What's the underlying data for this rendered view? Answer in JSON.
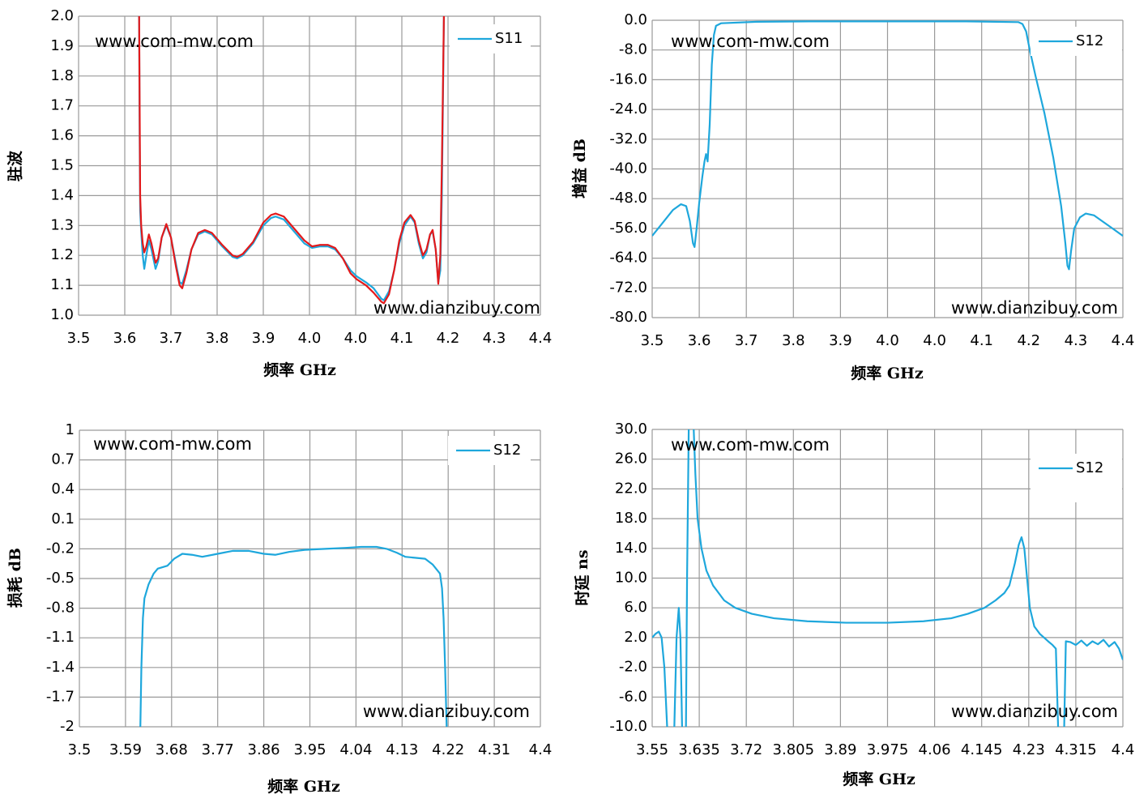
{
  "chart_data": [
    {
      "type": "line",
      "y_label": "驻波",
      "x_label": "频率 GHz",
      "annotations": [
        "www.com-mw.com",
        "www.dianzibuy.com"
      ],
      "x": [
        3.618,
        3.619,
        3.62,
        3.622,
        3.625,
        3.628,
        3.632,
        3.637,
        3.642,
        3.65,
        3.655,
        3.662,
        3.671,
        3.68,
        3.69,
        3.697,
        3.702,
        3.71,
        3.72,
        3.733,
        3.746,
        3.76,
        3.78,
        3.8,
        3.809,
        3.82,
        3.84,
        3.86,
        3.875,
        3.884,
        3.9,
        3.92,
        3.94,
        3.955,
        3.97,
        3.986,
        4.0,
        4.015,
        4.03,
        4.042,
        4.06,
        4.075,
        4.09,
        4.095,
        4.105,
        4.115,
        4.125,
        4.135,
        4.147,
        4.155,
        4.163,
        4.171,
        4.178,
        4.185,
        4.19,
        4.196,
        4.201,
        4.205,
        4.208,
        4.212
      ],
      "series": [
        {
          "name": "S11",
          "color": "#1ea7dc",
          "values": [
            2.0,
            1.6,
            1.35,
            1.28,
            1.2,
            1.155,
            1.2,
            1.25,
            1.22,
            1.155,
            1.18,
            1.26,
            1.3,
            1.26,
            1.17,
            1.11,
            1.105,
            1.15,
            1.22,
            1.27,
            1.28,
            1.27,
            1.23,
            1.195,
            1.19,
            1.2,
            1.24,
            1.3,
            1.325,
            1.33,
            1.32,
            1.28,
            1.24,
            1.225,
            1.23,
            1.23,
            1.22,
            1.19,
            1.15,
            1.13,
            1.11,
            1.09,
            1.055,
            1.05,
            1.08,
            1.15,
            1.24,
            1.3,
            1.33,
            1.31,
            1.24,
            1.19,
            1.21,
            1.27,
            1.28,
            1.22,
            1.11,
            1.15,
            1.4,
            2.0
          ]
        },
        {
          "color": "#e3191b",
          "values": [
            2.0,
            1.7,
            1.4,
            1.3,
            1.24,
            1.21,
            1.23,
            1.27,
            1.24,
            1.175,
            1.19,
            1.26,
            1.305,
            1.26,
            1.16,
            1.1,
            1.09,
            1.14,
            1.22,
            1.275,
            1.285,
            1.275,
            1.235,
            1.2,
            1.195,
            1.205,
            1.245,
            1.31,
            1.335,
            1.34,
            1.33,
            1.29,
            1.25,
            1.23,
            1.235,
            1.235,
            1.225,
            1.19,
            1.14,
            1.12,
            1.1,
            1.075,
            1.045,
            1.04,
            1.07,
            1.15,
            1.25,
            1.31,
            1.335,
            1.315,
            1.25,
            1.2,
            1.22,
            1.27,
            1.285,
            1.22,
            1.105,
            1.2,
            1.5,
            2.0
          ]
        }
      ],
      "xlim": [
        3.5,
        4.4
      ],
      "ylim": [
        1.0,
        2.0
      ],
      "xticks": [
        3.5,
        {
          "value": 3.59,
          "label": "3.6"
        },
        {
          "value": 3.68,
          "label": "3.7"
        },
        {
          "value": 3.77,
          "label": "3.8"
        },
        {
          "value": 3.86,
          "label": "3.9"
        },
        {
          "value": 3.95,
          "label": "4.0"
        },
        {
          "value": 4.04,
          "label": "4.0"
        },
        {
          "value": 4.13,
          "label": "4.1"
        },
        {
          "value": 4.22,
          "label": "4.2"
        },
        {
          "value": 4.31,
          "label": "4.3"
        },
        4.4
      ],
      "yticks": [
        {
          "value": 1.0,
          "label": "1.0"
        },
        1.1,
        1.2,
        1.3,
        1.4,
        1.5,
        1.6,
        1.7,
        1.8,
        1.9,
        {
          "value": 2.0,
          "label": "2.0"
        }
      ],
      "grid": true,
      "legend": "upper right"
    },
    {
      "type": "line",
      "y_label": "增益 dB",
      "x_label": "频率 GHz",
      "annotations": [
        "www.com-mw.com",
        "www.dianzibuy.com"
      ],
      "x": [
        3.5,
        3.52,
        3.54,
        3.555,
        3.565,
        3.572,
        3.578,
        3.581,
        3.585,
        3.59,
        3.596,
        3.6,
        3.603,
        3.606,
        3.61,
        3.614,
        3.618,
        3.622,
        3.632,
        3.7,
        3.8,
        3.9,
        4.0,
        4.1,
        4.2,
        4.208,
        4.215,
        4.222,
        4.233,
        4.25,
        4.267,
        4.282,
        4.29,
        4.294,
        4.297,
        4.301,
        4.307,
        4.318,
        4.329,
        4.345,
        4.36,
        4.38,
        4.4
      ],
      "series": [
        {
          "name": "S12",
          "color": "#1ea7dc",
          "values": [
            -58,
            -54.5,
            -51,
            -49.5,
            -50,
            -54,
            -60,
            -61,
            -56,
            -49,
            -42,
            -38,
            -36,
            -38,
            -28,
            -12,
            -4,
            -1.5,
            -0.8,
            -0.4,
            -0.3,
            -0.3,
            -0.3,
            -0.3,
            -0.5,
            -1,
            -3,
            -8,
            -15,
            -25,
            -37,
            -50,
            -60,
            -66,
            -67,
            -62,
            -56,
            -53,
            -52,
            -52.5,
            -54,
            -56,
            -58
          ]
        }
      ],
      "xlim": [
        3.5,
        4.4
      ],
      "ylim": [
        -80,
        0
      ],
      "xticks": [
        3.5,
        {
          "value": 3.59,
          "label": "3.6"
        },
        {
          "value": 3.68,
          "label": "3.7"
        },
        {
          "value": 3.77,
          "label": "3.8"
        },
        {
          "value": 3.86,
          "label": "3.9"
        },
        {
          "value": 3.95,
          "label": "4.0"
        },
        {
          "value": 4.04,
          "label": "4.0"
        },
        {
          "value": 4.13,
          "label": "4.1"
        },
        {
          "value": 4.22,
          "label": "4.2"
        },
        {
          "value": 4.31,
          "label": "4.3"
        },
        4.4
      ],
      "yticks": [
        {
          "value": 0,
          "label": "0.0"
        },
        {
          "value": -8,
          "label": "-8.0"
        },
        {
          "value": -16,
          "label": "-16.0"
        },
        {
          "value": -24,
          "label": "-24.0"
        },
        {
          "value": -32,
          "label": "-32.0"
        },
        {
          "value": -40,
          "label": "-40.0"
        },
        {
          "value": -48,
          "label": "-48.0"
        },
        {
          "value": -56,
          "label": "-56.0"
        },
        {
          "value": -64,
          "label": "-64.0"
        },
        {
          "value": -72,
          "label": "-72.0"
        },
        {
          "value": -80,
          "label": "-80.0"
        }
      ],
      "grid": true,
      "legend": "upper right"
    },
    {
      "type": "line",
      "y_label": "损耗 dB",
      "x_label": "频率 GHz",
      "annotations": [
        "www.com-mw.com",
        "www.dianzibuy.com"
      ],
      "x": [
        3.619,
        3.621,
        3.624,
        3.627,
        3.635,
        3.645,
        3.653,
        3.672,
        3.685,
        3.701,
        3.72,
        3.74,
        3.77,
        3.8,
        3.83,
        3.86,
        3.883,
        3.91,
        3.94,
        3.98,
        4.02,
        4.05,
        4.08,
        4.1,
        4.12,
        4.136,
        4.155,
        4.175,
        4.19,
        4.204,
        4.208,
        4.211,
        4.214,
        4.217
      ],
      "series": [
        {
          "name": "S12",
          "color": "#1ea7dc",
          "values": [
            -2,
            -1.4,
            -0.9,
            -0.7,
            -0.56,
            -0.45,
            -0.4,
            -0.37,
            -0.3,
            -0.25,
            -0.26,
            -0.28,
            -0.25,
            -0.22,
            -0.22,
            -0.25,
            -0.26,
            -0.23,
            -0.21,
            -0.2,
            -0.19,
            -0.18,
            -0.18,
            -0.2,
            -0.24,
            -0.28,
            -0.29,
            -0.3,
            -0.36,
            -0.45,
            -0.6,
            -0.9,
            -1.4,
            -2
          ]
        }
      ],
      "xlim": [
        3.5,
        4.4
      ],
      "ylim": [
        -2,
        1
      ],
      "xticks": [
        3.5,
        3.59,
        3.68,
        3.77,
        3.86,
        3.95,
        4.04,
        4.13,
        4.22,
        4.31,
        4.4
      ],
      "yticks": [
        1,
        0.7,
        0.4,
        0.1,
        -0.2,
        -0.5,
        -0.8,
        -1.1,
        -1.4,
        -1.7,
        -2
      ],
      "grid": true,
      "legend": "upper right"
    },
    {
      "type": "line",
      "y_label": "时延 ns",
      "x_label": "频率 GHz",
      "annotations": [
        "www.com-mw.com",
        "www.dianzibuy.com"
      ],
      "x": [
        3.55,
        3.556,
        3.562,
        3.567,
        3.572,
        3.577,
        3.584,
        3.59,
        3.594,
        3.598,
        3.601,
        3.604,
        3.608,
        3.611,
        3.613,
        3.616,
        3.62,
        3.625,
        3.628,
        3.632,
        3.639,
        3.648,
        3.66,
        3.68,
        3.7,
        3.73,
        3.77,
        3.83,
        3.9,
        3.975,
        4.04,
        4.09,
        4.12,
        4.15,
        4.17,
        4.186,
        4.195,
        4.205,
        4.212,
        4.217,
        4.222,
        4.227,
        4.232,
        4.24,
        4.25,
        4.265,
        4.273,
        4.279,
        4.283,
        4.288,
        4.294,
        4.297,
        4.305,
        4.315,
        4.325,
        4.335,
        4.345,
        4.355,
        4.365,
        4.375,
        4.385,
        4.393,
        4.4
      ],
      "series": [
        {
          "name": "S12",
          "color": "#1ea7dc",
          "values": [
            2.0,
            2.5,
            2.8,
            2.0,
            -2,
            -10,
            null,
            -10,
            2,
            6,
            2,
            -10,
            null,
            -10,
            10,
            30,
            null,
            30,
            24,
            18,
            14,
            11,
            9,
            7,
            6,
            5.2,
            4.6,
            4.2,
            4,
            4,
            4.2,
            4.6,
            5.2,
            6,
            7,
            8,
            9,
            12,
            14.5,
            15.5,
            14,
            10,
            6,
            3.5,
            2.5,
            1.5,
            1.0,
            0.5,
            -10,
            null,
            -10,
            1.5,
            1.4,
            1.0,
            1.6,
            0.9,
            1.5,
            1.1,
            1.7,
            0.8,
            1.4,
            0.5,
            -1.0
          ]
        }
      ],
      "xlim": [
        3.55,
        4.4
      ],
      "ylim": [
        -10,
        30
      ],
      "xticks": [
        3.55,
        3.635,
        3.72,
        3.805,
        3.89,
        3.975,
        4.06,
        4.145,
        4.23,
        4.315,
        4.4
      ],
      "yticks": [
        {
          "value": 30,
          "label": "30.0"
        },
        {
          "value": 26,
          "label": "26.0"
        },
        {
          "value": 22,
          "label": "22.0"
        },
        {
          "value": 18,
          "label": "18.0"
        },
        {
          "value": 14,
          "label": "14.0"
        },
        {
          "value": 10,
          "label": "10.0"
        },
        {
          "value": 6,
          "label": "6.0"
        },
        {
          "value": 2,
          "label": "2.0"
        },
        {
          "value": -2,
          "label": "-2.0"
        },
        {
          "value": -6,
          "label": "-6.0"
        },
        {
          "value": -10,
          "label": "-10.0"
        }
      ],
      "grid": true,
      "legend": "upper right"
    }
  ]
}
